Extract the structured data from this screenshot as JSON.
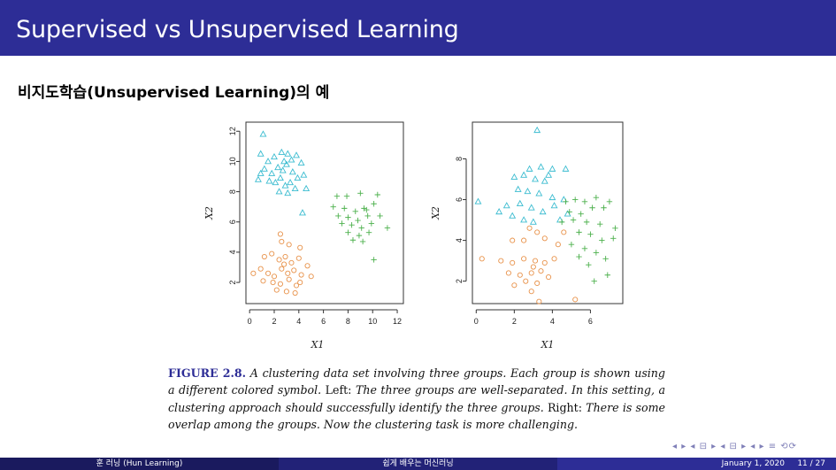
{
  "slide": {
    "title": "Supervised vs Unsupervised Learning",
    "subtitle": "비지도학습(Unsupervised Learning)의 예"
  },
  "caption": {
    "label": "FIGURE 2.8.",
    "text_italic_1": "A clustering data set involving three groups. Each group is shown using a different colored symbol.",
    "left_word": "Left:",
    "text_italic_2": "The three groups are well-separated. In this setting, a clustering approach should successfully identify the three groups.",
    "right_word": "Right:",
    "text_italic_3": "There is some overlap among the groups. Now the clustering task is more challenging."
  },
  "footer": {
    "author": "훈 러닝 (Hun Learning)",
    "course": "쉽게 배우는 머신러닝",
    "date": "January 1, 2020",
    "page": "11 / 27"
  },
  "colors": {
    "group1": "#3bbcd0",
    "group2": "#e8924a",
    "group3": "#4cb04c",
    "title_bar": "#2d2d96"
  },
  "chart_data": [
    {
      "type": "scatter",
      "xlabel": "X1",
      "ylabel": "X2",
      "xlim": [
        -0.3,
        12.5
      ],
      "ylim": [
        0.6,
        12.6
      ],
      "xticks": [
        "0",
        "2",
        "4",
        "6",
        "8",
        "10",
        "12"
      ],
      "yticks": [
        "2",
        "4",
        "6",
        "8",
        "10",
        "12"
      ],
      "series": [
        {
          "marker": "triangle",
          "points": [
            [
              1.1,
              11.8
            ],
            [
              0.9,
              10.5
            ],
            [
              1.5,
              10.0
            ],
            [
              2.0,
              10.3
            ],
            [
              2.6,
              10.6
            ],
            [
              3.1,
              10.5
            ],
            [
              3.4,
              10.1
            ],
            [
              3.8,
              10.4
            ],
            [
              4.2,
              9.9
            ],
            [
              1.2,
              9.5
            ],
            [
              1.8,
              9.2
            ],
            [
              2.3,
              9.6
            ],
            [
              2.7,
              9.4
            ],
            [
              3.0,
              9.8
            ],
            [
              3.5,
              9.3
            ],
            [
              3.9,
              8.9
            ],
            [
              4.4,
              9.1
            ],
            [
              1.6,
              8.7
            ],
            [
              2.1,
              8.6
            ],
            [
              2.5,
              8.9
            ],
            [
              2.9,
              8.4
            ],
            [
              3.3,
              8.6
            ],
            [
              3.7,
              8.2
            ],
            [
              0.7,
              8.8
            ],
            [
              2.4,
              8.0
            ],
            [
              3.1,
              7.9
            ],
            [
              4.6,
              8.2
            ],
            [
              4.3,
              6.6
            ],
            [
              0.9,
              9.2
            ],
            [
              2.8,
              10.0
            ]
          ]
        },
        {
          "marker": "circle",
          "points": [
            [
              2.5,
              5.2
            ],
            [
              2.6,
              4.7
            ],
            [
              3.2,
              4.5
            ],
            [
              4.1,
              4.3
            ],
            [
              1.2,
              3.7
            ],
            [
              1.8,
              3.9
            ],
            [
              2.4,
              3.5
            ],
            [
              2.9,
              3.7
            ],
            [
              3.4,
              3.3
            ],
            [
              4.0,
              3.6
            ],
            [
              4.7,
              3.1
            ],
            [
              0.3,
              2.6
            ],
            [
              0.9,
              2.9
            ],
            [
              1.5,
              2.6
            ],
            [
              2.0,
              2.4
            ],
            [
              2.6,
              2.9
            ],
            [
              3.1,
              2.6
            ],
            [
              3.6,
              2.8
            ],
            [
              4.2,
              2.5
            ],
            [
              5.0,
              2.4
            ],
            [
              1.1,
              2.1
            ],
            [
              1.9,
              2.0
            ],
            [
              2.5,
              1.9
            ],
            [
              3.2,
              2.2
            ],
            [
              3.8,
              1.8
            ],
            [
              2.2,
              1.5
            ],
            [
              3.0,
              1.4
            ],
            [
              3.7,
              1.3
            ],
            [
              4.1,
              2.0
            ],
            [
              2.8,
              3.2
            ]
          ]
        },
        {
          "marker": "plus",
          "points": [
            [
              7.1,
              7.7
            ],
            [
              7.9,
              7.7
            ],
            [
              9.0,
              7.9
            ],
            [
              10.4,
              7.8
            ],
            [
              6.8,
              7.0
            ],
            [
              7.7,
              6.9
            ],
            [
              8.6,
              6.7
            ],
            [
              9.3,
              6.9
            ],
            [
              10.1,
              7.2
            ],
            [
              7.2,
              6.4
            ],
            [
              8.0,
              6.3
            ],
            [
              8.8,
              6.1
            ],
            [
              9.6,
              6.4
            ],
            [
              10.6,
              6.4
            ],
            [
              7.5,
              5.9
            ],
            [
              8.3,
              5.8
            ],
            [
              9.1,
              5.6
            ],
            [
              9.9,
              5.9
            ],
            [
              8.0,
              5.3
            ],
            [
              8.9,
              5.1
            ],
            [
              9.7,
              5.3
            ],
            [
              11.2,
              5.6
            ],
            [
              8.4,
              4.8
            ],
            [
              9.2,
              4.7
            ],
            [
              10.1,
              3.5
            ],
            [
              9.5,
              6.8
            ]
          ]
        }
      ]
    },
    {
      "type": "scatter",
      "xlabel": "X1",
      "ylabel": "X2",
      "xlim": [
        -0.2,
        7.7
      ],
      "ylim": [
        0.9,
        9.8
      ],
      "xticks": [
        "0",
        "2",
        "4",
        "6"
      ],
      "yticks": [
        "2",
        "4",
        "6",
        "8"
      ],
      "series": [
        {
          "marker": "triangle",
          "points": [
            [
              3.2,
              9.4
            ],
            [
              2.8,
              7.5
            ],
            [
              3.4,
              7.6
            ],
            [
              4.0,
              7.5
            ],
            [
              4.7,
              7.5
            ],
            [
              2.0,
              7.1
            ],
            [
              2.5,
              7.2
            ],
            [
              3.1,
              7.0
            ],
            [
              3.6,
              6.9
            ],
            [
              2.2,
              6.5
            ],
            [
              2.7,
              6.4
            ],
            [
              3.3,
              6.3
            ],
            [
              4.0,
              6.1
            ],
            [
              4.6,
              6.0
            ],
            [
              0.1,
              5.9
            ],
            [
              1.6,
              5.7
            ],
            [
              2.3,
              5.8
            ],
            [
              2.9,
              5.6
            ],
            [
              3.5,
              5.4
            ],
            [
              4.1,
              5.7
            ],
            [
              4.8,
              5.3
            ],
            [
              1.9,
              5.2
            ],
            [
              2.5,
              5.0
            ],
            [
              3.0,
              4.9
            ],
            [
              4.4,
              5.0
            ],
            [
              1.2,
              5.4
            ],
            [
              3.8,
              7.2
            ]
          ]
        },
        {
          "marker": "circle",
          "points": [
            [
              2.8,
              4.6
            ],
            [
              3.2,
              4.4
            ],
            [
              1.9,
              4.0
            ],
            [
              2.5,
              4.0
            ],
            [
              3.6,
              4.1
            ],
            [
              4.3,
              3.8
            ],
            [
              4.6,
              4.4
            ],
            [
              0.3,
              3.1
            ],
            [
              1.3,
              3.0
            ],
            [
              1.9,
              2.9
            ],
            [
              2.5,
              3.1
            ],
            [
              3.1,
              3.0
            ],
            [
              3.6,
              2.9
            ],
            [
              4.1,
              3.1
            ],
            [
              1.7,
              2.4
            ],
            [
              2.3,
              2.3
            ],
            [
              2.9,
              2.4
            ],
            [
              3.4,
              2.5
            ],
            [
              3.8,
              2.2
            ],
            [
              2.6,
              2.0
            ],
            [
              3.2,
              1.9
            ],
            [
              2.0,
              1.8
            ],
            [
              2.9,
              1.5
            ],
            [
              3.3,
              1.0
            ],
            [
              5.2,
              1.1
            ],
            [
              3.0,
              2.7
            ]
          ]
        },
        {
          "marker": "plus",
          "points": [
            [
              4.7,
              5.9
            ],
            [
              5.2,
              6.0
            ],
            [
              5.7,
              5.9
            ],
            [
              6.3,
              6.1
            ],
            [
              7.0,
              5.9
            ],
            [
              4.9,
              5.4
            ],
            [
              5.5,
              5.3
            ],
            [
              6.1,
              5.6
            ],
            [
              6.7,
              5.6
            ],
            [
              4.5,
              4.9
            ],
            [
              5.1,
              5.0
            ],
            [
              5.8,
              4.9
            ],
            [
              6.5,
              4.8
            ],
            [
              7.3,
              4.6
            ],
            [
              5.4,
              4.4
            ],
            [
              6.0,
              4.3
            ],
            [
              6.6,
              4.0
            ],
            [
              5.0,
              3.8
            ],
            [
              5.7,
              3.6
            ],
            [
              6.3,
              3.4
            ],
            [
              7.2,
              4.1
            ],
            [
              5.9,
              2.8
            ],
            [
              6.9,
              2.3
            ],
            [
              6.2,
              2.0
            ],
            [
              6.8,
              3.1
            ],
            [
              5.4,
              3.2
            ]
          ]
        }
      ]
    }
  ]
}
